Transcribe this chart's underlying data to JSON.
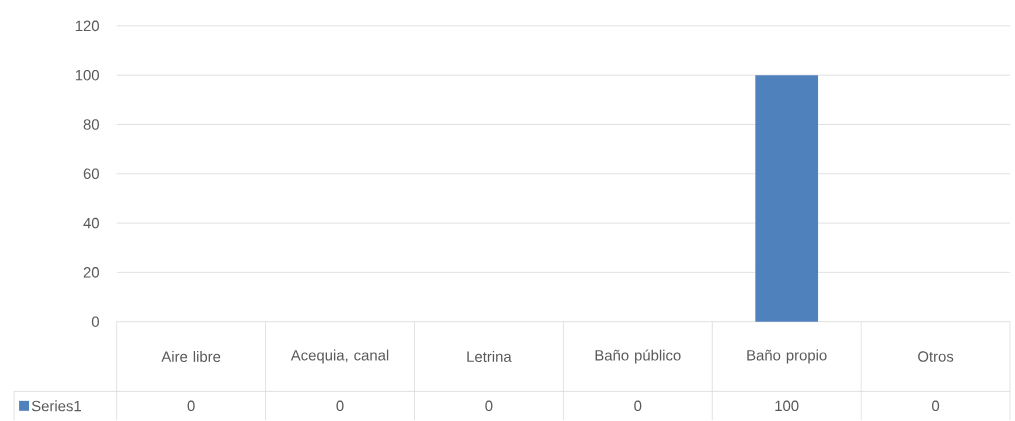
{
  "chart_data": {
    "type": "bar",
    "categories": [
      "Aire libre",
      "Acequia, canal",
      "Letrina",
      "Baño público",
      "Baño propio",
      "Otros"
    ],
    "series": [
      {
        "name": "Series1",
        "color": "#4f81bd",
        "values": [
          0,
          0,
          0,
          0,
          100,
          0
        ]
      }
    ],
    "ylim": [
      0,
      120
    ],
    "yticks": [
      0,
      20,
      40,
      60,
      80,
      100,
      120
    ],
    "grid": "y",
    "data_labels": true
  }
}
